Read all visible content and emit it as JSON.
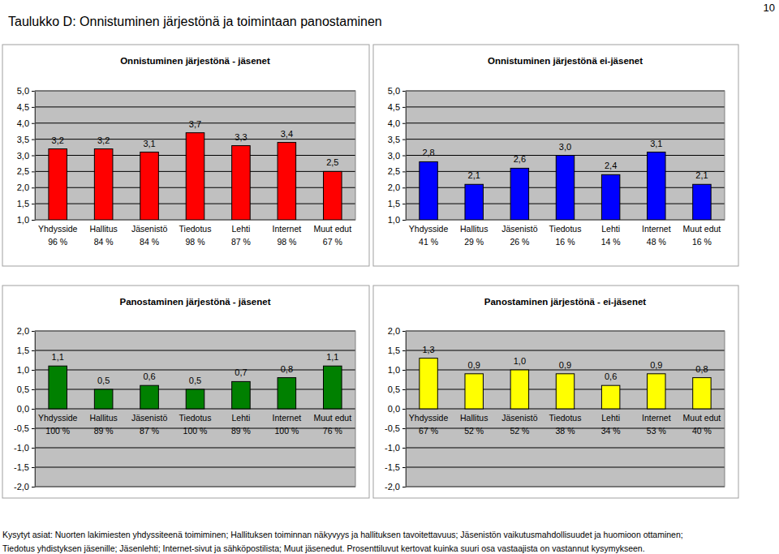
{
  "page": {
    "title": "Taulukko D: Onnistuminen järjestönä ja toimintaan panostaminen",
    "page_number": "10",
    "footnote": [
      "Kysytyt asiat:  Nuorten lakimiesten yhdyssiteenä toimiminen; Hallituksen toiminnan näkyvyys ja hallituksen tavoitettavuus; Jäsenistön vaikutusmahdollisuudet ja huomioon ottaminen;",
      "Tiedotus yhdistyksen jäsenille; Jäsenlehti; Internet-sivut ja sähköpostilista; Muut jäsenedut. Prosenttiluvut kertovat kuinka suuri osa vastaajista on vastannut kysymykseen."
    ]
  },
  "chart_data": [
    {
      "type": "bar",
      "title": "Onnistuminen järjestönä - jäsenet",
      "categories": [
        "Yhdysside",
        "Hallitus",
        "Jäsenistö",
        "Tiedotus",
        "Lehti",
        "Internet",
        "Muut edut"
      ],
      "share_labels": [
        "96 %",
        "84 %",
        "84 %",
        "98 %",
        "87 %",
        "98 %",
        "67 %"
      ],
      "values": [
        3.2,
        3.2,
        3.1,
        3.7,
        3.3,
        3.4,
        2.5
      ],
      "value_labels": [
        "3,2",
        "3,2",
        "3,1",
        "3,7",
        "3,3",
        "3,4",
        "2,5"
      ],
      "color": "#ff0000",
      "ylim": [
        1,
        5
      ],
      "yticks": [
        {
          "value": 1,
          "label": "1,0"
        },
        {
          "value": 1.5,
          "label": "1,5"
        },
        {
          "value": 2,
          "label": "2,0"
        },
        {
          "value": 2.5,
          "label": "2,5"
        },
        {
          "value": 3,
          "label": "3,0"
        },
        {
          "value": 3.5,
          "label": "3,5"
        },
        {
          "value": 4,
          "label": "4,0"
        },
        {
          "value": 4.5,
          "label": "4,5"
        },
        {
          "value": 5,
          "label": "5,0"
        }
      ],
      "grid": true,
      "data_labels": true
    },
    {
      "type": "bar",
      "title": "Onnistuminen järjestönä ei-jäsenet",
      "categories": [
        "Yhdysside",
        "Hallitus",
        "Jäsenistö",
        "Tiedotus",
        "Lehti",
        "Internet",
        "Muut edut"
      ],
      "share_labels": [
        "41 %",
        "29 %",
        "26 %",
        "16 %",
        "14 %",
        "48 %",
        "16 %"
      ],
      "values": [
        2.8,
        2.1,
        2.6,
        3.0,
        2.4,
        3.1,
        2.1
      ],
      "value_labels": [
        "2,8",
        "2,1",
        "2,6",
        "3,0",
        "2,4",
        "3,1",
        "2,1"
      ],
      "color": "#0000ff",
      "ylim": [
        1,
        5
      ],
      "yticks": [
        {
          "value": 1,
          "label": "1,0"
        },
        {
          "value": 1.5,
          "label": "1,5"
        },
        {
          "value": 2,
          "label": "2,0"
        },
        {
          "value": 2.5,
          "label": "2,5"
        },
        {
          "value": 3,
          "label": "3,0"
        },
        {
          "value": 3.5,
          "label": "3,5"
        },
        {
          "value": 4,
          "label": "4,0"
        },
        {
          "value": 4.5,
          "label": "4,5"
        },
        {
          "value": 5,
          "label": "5,0"
        }
      ],
      "grid": true,
      "data_labels": true
    },
    {
      "type": "bar",
      "title": "Panostaminen järjestönä - jäsenet",
      "categories": [
        "Yhdysside",
        "Hallitus",
        "Jäsenistö",
        "Tiedotus",
        "Lehti",
        "Internet",
        "Muut edut"
      ],
      "share_labels": [
        "100 %",
        "89 %",
        "87 %",
        "100 %",
        "89 %",
        "100 %",
        "76 %"
      ],
      "values": [
        1.1,
        0.5,
        0.6,
        0.5,
        0.7,
        0.8,
        1.1
      ],
      "value_labels": [
        "1,1",
        "0,5",
        "0,6",
        "0,5",
        "0,7",
        "0,8",
        "1,1"
      ],
      "color": "#008000",
      "ylim": [
        -2,
        2
      ],
      "yticks": [
        {
          "value": -2,
          "label": "-2,0"
        },
        {
          "value": -1.5,
          "label": "-1,5"
        },
        {
          "value": -1,
          "label": "-1,0"
        },
        {
          "value": -0.5,
          "label": "-0,5"
        },
        {
          "value": 0,
          "label": "0,0"
        },
        {
          "value": 0.5,
          "label": "0,5"
        },
        {
          "value": 1,
          "label": "1,0"
        },
        {
          "value": 1.5,
          "label": "1,5"
        },
        {
          "value": 2,
          "label": "2,0"
        }
      ],
      "grid": true,
      "data_labels": true
    },
    {
      "type": "bar",
      "title": "Panostaminen järjestönä - ei-jäsenet",
      "categories": [
        "Yhdysside",
        "Hallitus",
        "Jäsenistö",
        "Tiedotus",
        "Lehti",
        "Internet",
        "Muut edut"
      ],
      "share_labels": [
        "67 %",
        "52 %",
        "52 %",
        "38 %",
        "34 %",
        "53 %",
        "40 %"
      ],
      "values": [
        1.3,
        0.9,
        1.0,
        0.9,
        0.6,
        0.9,
        0.8
      ],
      "value_labels": [
        "1,3",
        "0,9",
        "1,0",
        "0,9",
        "0,6",
        "0,9",
        "0,8"
      ],
      "color": "#ffff00",
      "ylim": [
        -2,
        2
      ],
      "yticks": [
        {
          "value": -2,
          "label": "-2,0"
        },
        {
          "value": -1.5,
          "label": "-1,5"
        },
        {
          "value": -1,
          "label": "-1,0"
        },
        {
          "value": -0.5,
          "label": "-0,5"
        },
        {
          "value": 0,
          "label": "0,0"
        },
        {
          "value": 0.5,
          "label": "0,5"
        },
        {
          "value": 1,
          "label": "1,0"
        },
        {
          "value": 1.5,
          "label": "1,5"
        },
        {
          "value": 2,
          "label": "2,0"
        }
      ],
      "grid": true,
      "data_labels": true
    }
  ]
}
